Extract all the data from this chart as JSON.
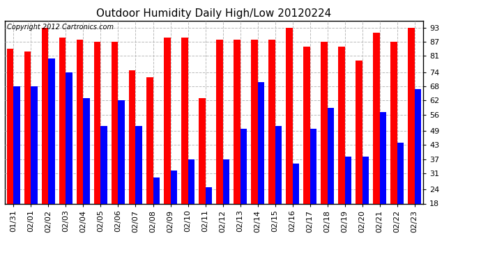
{
  "title": "Outdoor Humidity Daily High/Low 20120224",
  "copyright": "Copyright 2012 Cartronics.com",
  "dates": [
    "01/31",
    "02/01",
    "02/02",
    "02/03",
    "02/04",
    "02/05",
    "02/06",
    "02/07",
    "02/08",
    "02/09",
    "02/10",
    "02/11",
    "02/12",
    "02/13",
    "02/14",
    "02/15",
    "02/16",
    "02/17",
    "02/18",
    "02/19",
    "02/20",
    "02/21",
    "02/22",
    "02/23"
  ],
  "highs": [
    84,
    83,
    93,
    89,
    88,
    87,
    87,
    75,
    72,
    89,
    89,
    63,
    88,
    88,
    88,
    88,
    93,
    85,
    87,
    85,
    79,
    91,
    87,
    93
  ],
  "lows": [
    68,
    68,
    80,
    74,
    63,
    51,
    62,
    51,
    29,
    32,
    37,
    25,
    37,
    50,
    70,
    51,
    35,
    50,
    59,
    38,
    38,
    57,
    44,
    67
  ],
  "high_color": "#FF0000",
  "low_color": "#0000FF",
  "bg_color": "#FFFFFF",
  "grid_color": "#BBBBBB",
  "yticks": [
    18,
    24,
    31,
    37,
    43,
    49,
    56,
    62,
    68,
    74,
    81,
    87,
    93
  ],
  "ymin": 18,
  "ymax": 96,
  "bar_width": 0.38,
  "title_fontsize": 11,
  "tick_fontsize": 8,
  "copyright_fontsize": 7
}
